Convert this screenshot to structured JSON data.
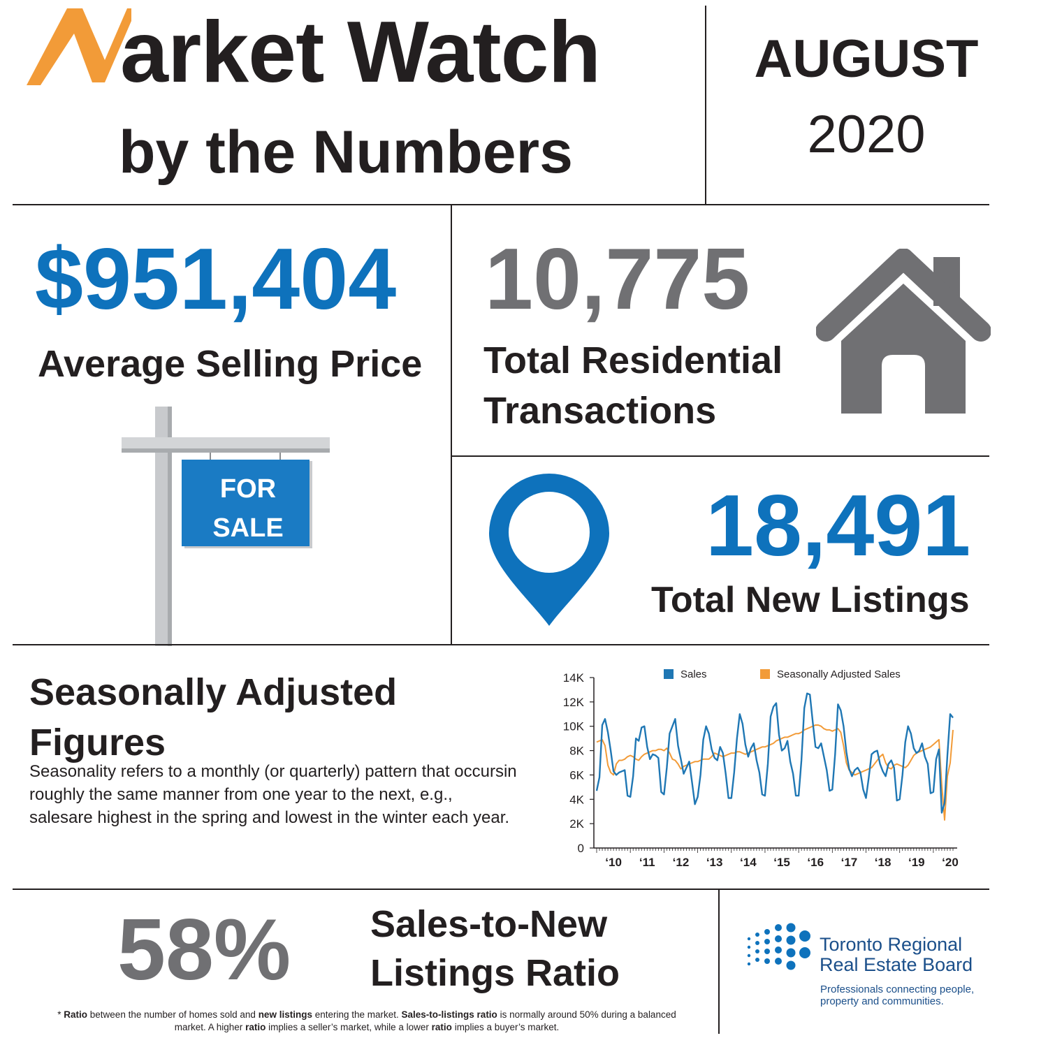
{
  "header": {
    "title_rest": "arket Watch",
    "subtitle": "by the Numbers",
    "month": "AUGUST",
    "year": "2020"
  },
  "stats": {
    "avg_price": "$951,404",
    "avg_price_label": "Average Selling Price",
    "transactions": "10,775",
    "transactions_label_1": "Total Residential",
    "transactions_label_2": "Transactions",
    "new_listings": "18,491",
    "new_listings_label": "Total New Listings"
  },
  "sign": {
    "line1": "FOR",
    "line2": "SALE"
  },
  "seasonal": {
    "title_1": "Seasonally Adjusted",
    "title_2": "Figures",
    "body": "Seasonality refers to a monthly (or quarterly) pattern that occursin roughly the same manner from one year to the next, e.g., salesare highest in the spring and lowest in the winter each year."
  },
  "ratio": {
    "value": "58%",
    "label_1": "Sales-to-New",
    "label_2": "Listings Ratio",
    "footnote_html": "* <b>Ratio</b> between the number of homes sold and <b>new listings</b> entering the market. <b>Sales-to-listings ratio</b> is normally around 50% during a balanced market. A higher <b>ratio</b> implies a seller’s market, while a lower <b>ratio</b> implies a buyer’s market."
  },
  "trreb": {
    "name_1": "Toronto Regional",
    "name_2": "Real Estate Board",
    "tagline_1": "Professionals connecting people,",
    "tagline_2": "property and communities."
  },
  "colors": {
    "blue": "#0e72bc",
    "gray": "#707073",
    "orange": "#f29b38",
    "line_blue": "#1f77b4"
  },
  "chart_data": {
    "type": "line",
    "title": "",
    "xlabel": "",
    "ylabel": "",
    "ylim": [
      0,
      14000
    ],
    "yticks": [
      "0",
      "2K",
      "4K",
      "6K",
      "8K",
      "10K",
      "12K",
      "14K"
    ],
    "xticks": [
      "‘10",
      "‘11",
      "‘12",
      "‘13",
      "‘14",
      "‘15",
      "‘16",
      "‘17",
      "‘18",
      "‘19",
      "‘20"
    ],
    "legend_position": "top",
    "series": [
      {
        "name": "Sales",
        "color": "#1f77b4",
        "start": "2010-01",
        "values": [
          4700,
          5800,
          10100,
          10600,
          9500,
          8000,
          6300,
          6000,
          6200,
          6300,
          6400,
          4300,
          4200,
          5900,
          9000,
          8800,
          9900,
          10000,
          8300,
          7300,
          7700,
          7600,
          7400,
          4600,
          4400,
          6600,
          9400,
          10000,
          10600,
          8400,
          7300,
          6100,
          6600,
          7100,
          5400,
          3600,
          4200,
          6000,
          8900,
          10000,
          9400,
          8100,
          7400,
          7200,
          8300,
          7800,
          6100,
          4100,
          4100,
          6200,
          9000,
          11000,
          10200,
          8500,
          7500,
          8200,
          8600,
          7200,
          6200,
          4400,
          4300,
          6900,
          10800,
          11600,
          11900,
          9300,
          8000,
          8200,
          8800,
          7100,
          6100,
          4300,
          4300,
          7200,
          11500,
          12700,
          12600,
          10400,
          8300,
          8200,
          8600,
          7500,
          6400,
          4700,
          4800,
          7700,
          11800,
          11300,
          10000,
          7900,
          6500,
          5900,
          6400,
          6600,
          6200,
          4800,
          4100,
          5800,
          7700,
          7900,
          8000,
          6900,
          6300,
          5900,
          6900,
          7200,
          6600,
          3900,
          4000,
          6000,
          8700,
          10000,
          9400,
          8200,
          7800,
          8000,
          8600,
          7500,
          6900,
          4500,
          4600,
          7300,
          8100,
          2900,
          3700,
          7600,
          11000,
          10700
        ]
      },
      {
        "name": "Seasonally Adjusted Sales",
        "color": "#f29b38",
        "start": "2010-01",
        "values": [
          8700,
          8800,
          8900,
          8400,
          6800,
          6200,
          6000,
          6900,
          7200,
          7200,
          7300,
          7500,
          7600,
          7500,
          7300,
          7200,
          7500,
          7700,
          7800,
          7900,
          8000,
          8000,
          8100,
          8100,
          8000,
          8200,
          7800,
          7300,
          7200,
          6900,
          6500,
          6700,
          6800,
          6900,
          7000,
          7100,
          7100,
          7200,
          7300,
          7300,
          7300,
          7500,
          7800,
          7700,
          7600,
          7500,
          7600,
          7700,
          7800,
          7800,
          7900,
          7900,
          7800,
          7700,
          7800,
          7900,
          8000,
          8100,
          8200,
          8300,
          8300,
          8400,
          8500,
          8600,
          8800,
          8900,
          9000,
          9100,
          9100,
          9200,
          9300,
          9400,
          9400,
          9500,
          9700,
          9800,
          9900,
          10000,
          10100,
          10100,
          10000,
          9800,
          9700,
          9700,
          9600,
          9700,
          9800,
          9500,
          8400,
          7000,
          6400,
          6200,
          6000,
          6100,
          6200,
          6300,
          6400,
          6500,
          6600,
          6900,
          7200,
          7500,
          7700,
          7000,
          6600,
          6500,
          6800,
          6900,
          6800,
          6700,
          6600,
          6800,
          7200,
          7600,
          7800,
          7900,
          8000,
          8100,
          8200,
          8300,
          8500,
          8700,
          8900,
          5200,
          2300,
          5900,
          7000,
          9700
        ]
      }
    ]
  }
}
